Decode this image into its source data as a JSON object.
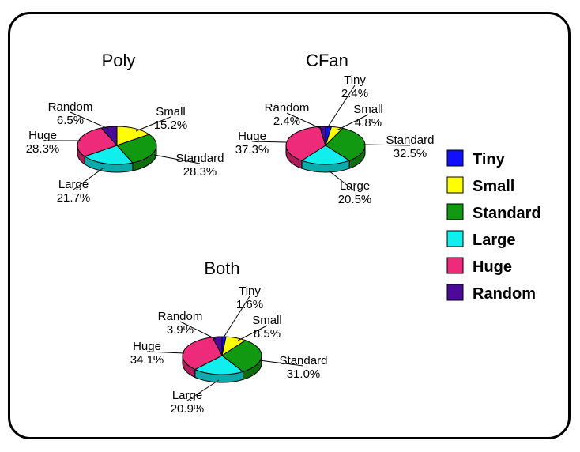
{
  "colors": {
    "Tiny": "#1010ff",
    "Small": "#ffff00",
    "Standard": "#119911",
    "Large": "#11eeee",
    "Huge": "#ee2a7b",
    "Random": "#4a0a9a"
  },
  "legend": {
    "placement": "right",
    "entries": [
      "Tiny",
      "Small",
      "Standard",
      "Large",
      "Huge",
      "Random"
    ]
  },
  "chart_data": [
    {
      "type": "pie",
      "title": "Poly",
      "slices": [
        {
          "name": "Small",
          "value": 15.2,
          "label": "15.2%"
        },
        {
          "name": "Standard",
          "value": 28.3,
          "label": "28.3%"
        },
        {
          "name": "Large",
          "value": 21.7,
          "label": "21.7%"
        },
        {
          "name": "Huge",
          "value": 28.3,
          "label": "28.3%"
        },
        {
          "name": "Random",
          "value": 6.5,
          "label": "6.5%"
        }
      ]
    },
    {
      "type": "pie",
      "title": "CFan",
      "slices": [
        {
          "name": "Tiny",
          "value": 2.4,
          "label": "2.4%"
        },
        {
          "name": "Small",
          "value": 4.8,
          "label": "4.8%"
        },
        {
          "name": "Standard",
          "value": 32.5,
          "label": "32.5%"
        },
        {
          "name": "Large",
          "value": 20.5,
          "label": "20.5%"
        },
        {
          "name": "Huge",
          "value": 37.3,
          "label": "37.3%"
        },
        {
          "name": "Random",
          "value": 2.4,
          "label": "2.4%"
        }
      ]
    },
    {
      "type": "pie",
      "title": "Both",
      "slices": [
        {
          "name": "Tiny",
          "value": 1.6,
          "label": "1.6%"
        },
        {
          "name": "Small",
          "value": 8.5,
          "label": "8.5%"
        },
        {
          "name": "Standard",
          "value": 31.0,
          "label": "31.0%"
        },
        {
          "name": "Large",
          "value": 20.9,
          "label": "20.9%"
        },
        {
          "name": "Huge",
          "value": 34.1,
          "label": "34.1%"
        },
        {
          "name": "Random",
          "value": 3.9,
          "label": "3.9%"
        }
      ]
    }
  ]
}
